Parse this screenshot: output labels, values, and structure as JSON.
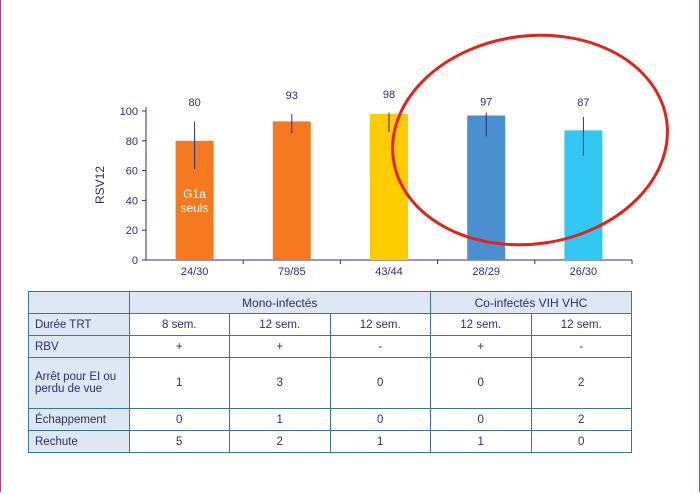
{
  "chart_data": {
    "type": "bar",
    "ylabel": "RSV12",
    "ylim": [
      0,
      100
    ],
    "yticks": [
      0,
      20,
      40,
      60,
      80,
      100
    ],
    "categories": [
      "24/30",
      "79/85",
      "43/44",
      "28/29",
      "26/30"
    ],
    "values": [
      80,
      93,
      98,
      97,
      87
    ],
    "error_low": [
      61,
      85,
      86,
      83,
      70
    ],
    "error_high": [
      93,
      98,
      99,
      99,
      96
    ],
    "colors": [
      "#f47920",
      "#f47920",
      "#ffcc00",
      "#4a8fd0",
      "#33c7f4"
    ],
    "inner_label": [
      "G1a",
      "seuls"
    ],
    "annotation": "red-circle-around-last-two-bars"
  },
  "table": {
    "group_headers": [
      "Mono-infectés",
      "Co-infectés VIH VHC"
    ],
    "rows": [
      {
        "label": "Durée TRT",
        "cells": [
          "8 sem.",
          "12 sem.",
          "12 sem.",
          "12 sem.",
          "12 sem."
        ]
      },
      {
        "label": "RBV",
        "cells": [
          "+",
          "+",
          "-",
          "+",
          "-"
        ]
      },
      {
        "label": "Arrêt pour EI ou perdu de vue",
        "cells": [
          "1",
          "3",
          "0",
          "0",
          "2"
        ]
      },
      {
        "label": "Échappement",
        "cells": [
          "0",
          "1",
          "0",
          "0",
          "2"
        ]
      },
      {
        "label": "Rechute",
        "cells": [
          "5",
          "2",
          "1",
          "1",
          "0"
        ]
      }
    ]
  }
}
